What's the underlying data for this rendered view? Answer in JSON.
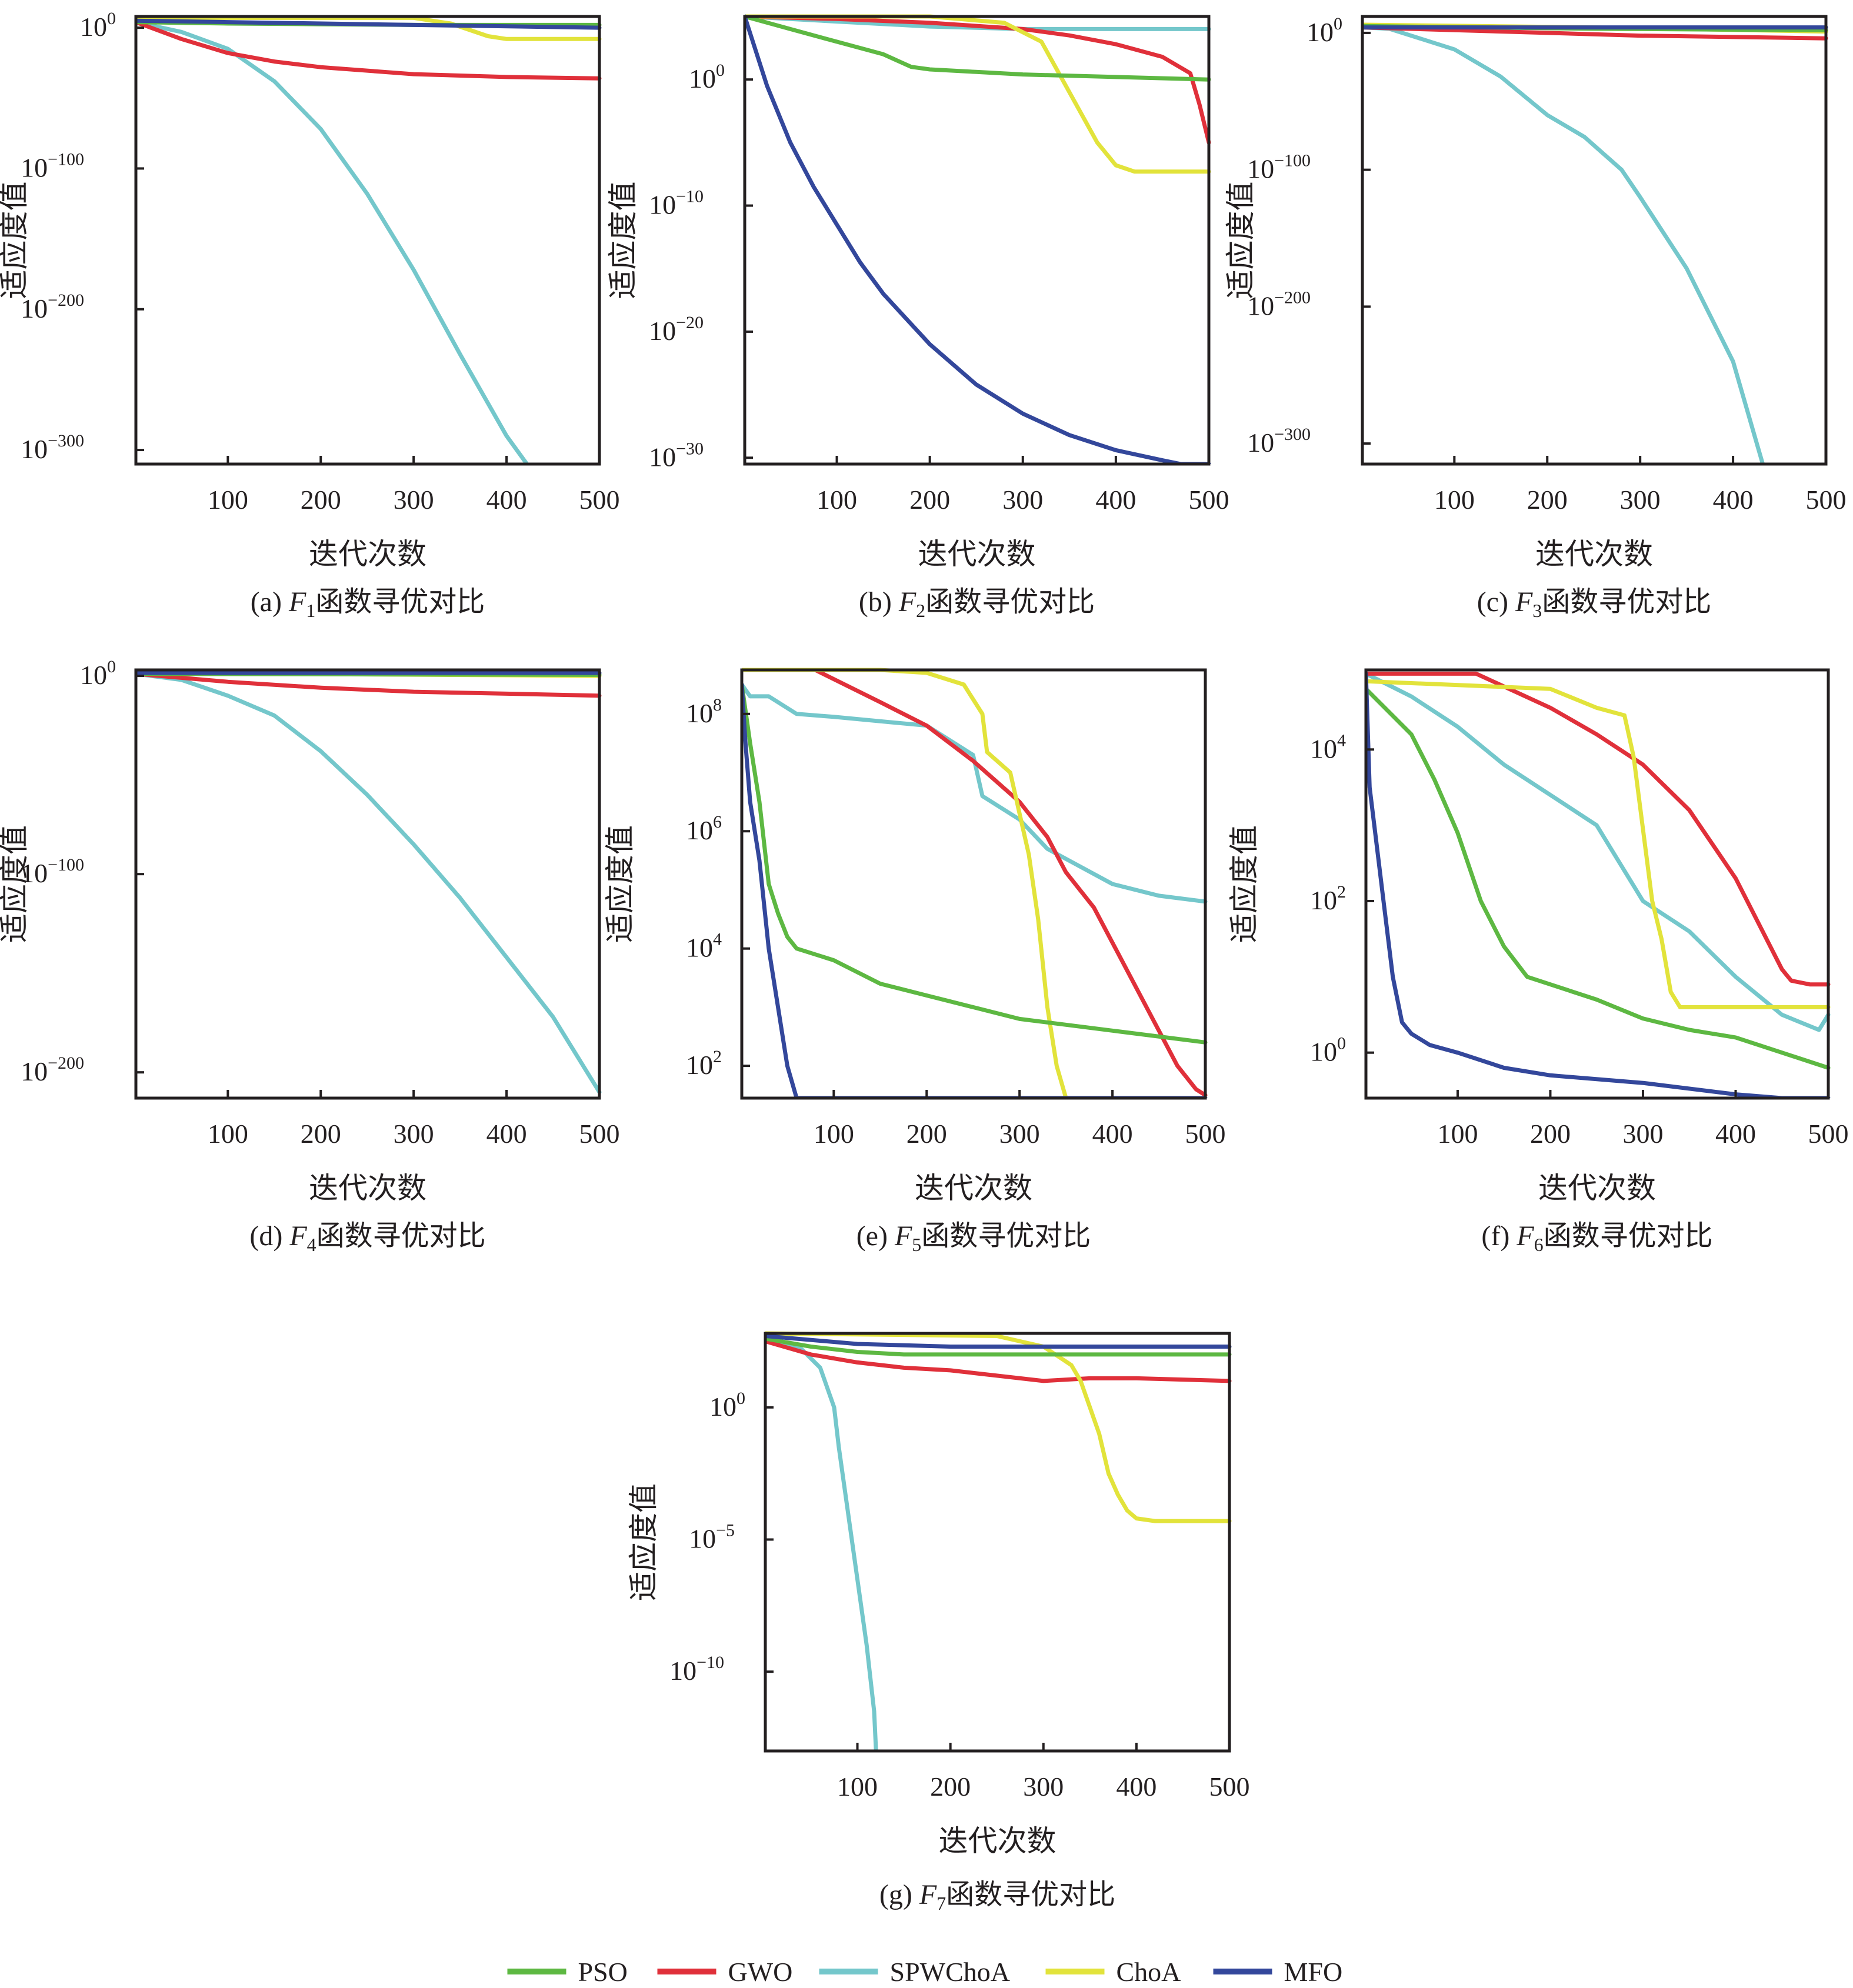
{
  "figure": {
    "legend": [
      {
        "name": "PSO",
        "color": "#5db842"
      },
      {
        "name": "GWO",
        "color": "#e0303a"
      },
      {
        "name": "SPWChoA",
        "color": "#74c7cb"
      },
      {
        "name": "ChoA",
        "color": "#e2e33b"
      },
      {
        "name": "MFO",
        "color": "#33479b"
      }
    ]
  },
  "chart_data": [
    {
      "type": "line",
      "id": "a",
      "title": "(a) F1函数寻优对比",
      "caption_prefix": "(a) ",
      "caption_fn": "F",
      "caption_sub": "1",
      "caption_suffix": "函数寻优对比",
      "xlabel": "迭代次数",
      "ylabel": "适应度值",
      "yscale": "log",
      "xlim": [
        1,
        500
      ],
      "ylim_exp": [
        -310,
        8
      ],
      "xticks": [
        100,
        200,
        300,
        400,
        500
      ],
      "yticks_exp": [
        0,
        -100,
        -200,
        -300
      ],
      "yticks": [
        "10^0",
        "10^-100",
        "10^-200",
        "10^-300"
      ],
      "series": [
        {
          "name": "PSO",
          "x": [
            1,
            100,
            200,
            300,
            400,
            500
          ],
          "log10y": [
            4,
            3,
            2.5,
            2,
            2,
            2
          ]
        },
        {
          "name": "GWO",
          "x": [
            1,
            50,
            100,
            150,
            200,
            300,
            400,
            500
          ],
          "log10y": [
            4,
            -8,
            -18,
            -24,
            -28,
            -33,
            -35,
            -36
          ]
        },
        {
          "name": "SPWChoA",
          "x": [
            1,
            50,
            100,
            150,
            200,
            250,
            300,
            350,
            400,
            422
          ],
          "log10y": [
            4,
            -3,
            -15,
            -38,
            -72,
            -118,
            -172,
            -232,
            -290,
            -310
          ]
        },
        {
          "name": "ChoA",
          "x": [
            1,
            300,
            340,
            380,
            400,
            500
          ],
          "log10y": [
            7,
            7,
            3,
            -6,
            -8,
            -8
          ]
        },
        {
          "name": "MFO",
          "x": [
            1,
            100,
            300,
            500
          ],
          "log10y": [
            5,
            4,
            2,
            0
          ]
        }
      ]
    },
    {
      "type": "line",
      "id": "b",
      "title": "(b) F2函数寻优对比",
      "caption_prefix": "(b) ",
      "caption_fn": "F",
      "caption_sub": "2",
      "caption_suffix": "函数寻优对比",
      "xlabel": "迭代次数",
      "ylabel": "适应度值",
      "yscale": "log",
      "xlim": [
        1,
        500
      ],
      "ylim_exp": [
        -30.5,
        5
      ],
      "xticks": [
        100,
        200,
        300,
        400,
        500
      ],
      "yticks_exp": [
        0,
        -10,
        -20,
        -30
      ],
      "yticks": [
        "10^0",
        "10^-10",
        "10^-20",
        "10^-30"
      ],
      "series": [
        {
          "name": "PSO",
          "x": [
            1,
            50,
            100,
            150,
            180,
            200,
            250,
            300,
            400,
            500
          ],
          "log10y": [
            5,
            4,
            3,
            2,
            1,
            0.8,
            0.6,
            0.4,
            0.2,
            0
          ]
        },
        {
          "name": "GWO",
          "x": [
            1,
            100,
            200,
            300,
            350,
            400,
            450,
            480,
            490,
            500
          ],
          "log10y": [
            5,
            4.8,
            4.5,
            4,
            3.5,
            2.8,
            1.8,
            0.5,
            -2,
            -5
          ]
        },
        {
          "name": "SPWChoA",
          "x": [
            1,
            100,
            200,
            300,
            400,
            500
          ],
          "log10y": [
            5,
            4.6,
            4.2,
            4,
            4,
            4
          ]
        },
        {
          "name": "ChoA",
          "x": [
            1,
            200,
            280,
            320,
            350,
            380,
            400,
            420,
            500
          ],
          "log10y": [
            5,
            5,
            4.5,
            3,
            -1,
            -5,
            -6.8,
            -7.3,
            -7.3
          ]
        },
        {
          "name": "MFO",
          "x": [
            1,
            25,
            50,
            75,
            100,
            125,
            150,
            175,
            200,
            250,
            300,
            350,
            400,
            450,
            470,
            500
          ],
          "log10y": [
            5,
            -0.5,
            -5,
            -8.5,
            -11.5,
            -14.5,
            -17,
            -19,
            -21,
            -24.2,
            -26.5,
            -28.2,
            -29.4,
            -30.2,
            -30.5,
            -30.5
          ]
        }
      ]
    },
    {
      "type": "line",
      "id": "c",
      "title": "(c) F3函数寻优对比",
      "caption_prefix": "(c) ",
      "caption_fn": "F",
      "caption_sub": "3",
      "caption_suffix": "函数寻优对比",
      "xlabel": "迭代次数",
      "ylabel": "适应度值",
      "yscale": "log",
      "xlim": [
        1,
        500
      ],
      "ylim_exp": [
        -315,
        12
      ],
      "xticks": [
        100,
        200,
        300,
        400,
        500
      ],
      "yticks_exp": [
        0,
        -100,
        -200,
        -300
      ],
      "yticks": [
        "10^0",
        "10^-100",
        "10^-200",
        "10^-300"
      ],
      "series": [
        {
          "name": "PSO",
          "x": [
            1,
            250,
            500
          ],
          "log10y": [
            5,
            3,
            2
          ]
        },
        {
          "name": "GWO",
          "x": [
            1,
            100,
            200,
            300,
            400,
            500
          ],
          "log10y": [
            4,
            2,
            0,
            -2,
            -3,
            -4
          ]
        },
        {
          "name": "SPWChoA",
          "x": [
            1,
            30,
            100,
            150,
            200,
            240,
            280,
            300,
            350,
            400,
            432
          ],
          "log10y": [
            4,
            3,
            -12,
            -32,
            -60,
            -76,
            -100,
            -120,
            -172,
            -240,
            -315
          ]
        },
        {
          "name": "ChoA",
          "x": [
            1,
            250,
            500
          ],
          "log10y": [
            6,
            4,
            1
          ]
        },
        {
          "name": "MFO",
          "x": [
            1,
            500
          ],
          "log10y": [
            4,
            4
          ]
        }
      ]
    },
    {
      "type": "line",
      "id": "d",
      "title": "(d) F4函数寻优对比",
      "caption_prefix": "(d) ",
      "caption_fn": "F",
      "caption_sub": "4",
      "caption_suffix": "函数寻优对比",
      "xlabel": "迭代次数",
      "ylabel": "适应度值",
      "yscale": "log",
      "xlim": [
        1,
        500
      ],
      "ylim_exp": [
        -213,
        3
      ],
      "xticks": [
        100,
        200,
        300,
        400,
        500
      ],
      "yticks_exp": [
        0,
        -100,
        -200
      ],
      "yticks": [
        "10^0",
        "10^-100",
        "10^-200"
      ],
      "series": [
        {
          "name": "PSO",
          "x": [
            1,
            500
          ],
          "log10y": [
            1,
            0.5
          ]
        },
        {
          "name": "GWO",
          "x": [
            1,
            100,
            200,
            300,
            400,
            500
          ],
          "log10y": [
            1,
            -3,
            -6,
            -8,
            -9,
            -10
          ]
        },
        {
          "name": "SPWChoA",
          "x": [
            1,
            50,
            100,
            150,
            200,
            250,
            300,
            350,
            400,
            450,
            500
          ],
          "log10y": [
            1,
            -2,
            -10,
            -20,
            -38,
            -60,
            -85,
            -112,
            -142,
            -172,
            -210
          ]
        },
        {
          "name": "ChoA",
          "x": [
            1,
            500
          ],
          "log10y": [
            1.5,
            0
          ]
        },
        {
          "name": "MFO",
          "x": [
            1,
            500
          ],
          "log10y": [
            1.5,
            1.5
          ]
        }
      ]
    },
    {
      "type": "line",
      "id": "e",
      "title": "(e) F5函数寻优对比",
      "caption_prefix": "(e) ",
      "caption_fn": "F",
      "caption_sub": "5",
      "caption_suffix": "函数寻优对比",
      "xlabel": "迭代次数",
      "ylabel": "适应度值",
      "yscale": "log",
      "xlim": [
        1,
        500
      ],
      "ylim_exp": [
        1.45,
        8.75
      ],
      "xticks": [
        100,
        200,
        300,
        400,
        500
      ],
      "yticks_exp": [
        2,
        4,
        6,
        8
      ],
      "yticks": [
        "10^2",
        "10^4",
        "10^6",
        "10^8"
      ],
      "series": [
        {
          "name": "PSO",
          "x": [
            1,
            10,
            20,
            30,
            40,
            50,
            60,
            100,
            150,
            200,
            250,
            300,
            350,
            400,
            500
          ],
          "log10y": [
            8.5,
            7.5,
            6.5,
            5.1,
            4.6,
            4.2,
            4.0,
            3.8,
            3.4,
            3.2,
            3.0,
            2.8,
            2.7,
            2.6,
            2.4
          ]
        },
        {
          "name": "GWO",
          "x": [
            1,
            80,
            150,
            200,
            250,
            300,
            330,
            350,
            380,
            400,
            430,
            450,
            470,
            490,
            500
          ],
          "log10y": [
            8.75,
            8.75,
            8.2,
            7.8,
            7.2,
            6.5,
            5.9,
            5.3,
            4.7,
            4.1,
            3.2,
            2.6,
            2.0,
            1.6,
            1.5
          ]
        },
        {
          "name": "SPWChoA",
          "x": [
            1,
            10,
            30,
            60,
            100,
            200,
            250,
            260,
            300,
            330,
            400,
            450,
            500
          ],
          "log10y": [
            8.5,
            8.3,
            8.3,
            8.0,
            7.95,
            7.8,
            7.3,
            6.6,
            6.2,
            5.7,
            5.1,
            4.9,
            4.8
          ]
        },
        {
          "name": "ChoA",
          "x": [
            1,
            150,
            200,
            240,
            260,
            265,
            290,
            300,
            310,
            320,
            330,
            340,
            350,
            500
          ],
          "log10y": [
            8.75,
            8.75,
            8.7,
            8.5,
            8.0,
            7.35,
            7.0,
            6.3,
            5.6,
            4.5,
            3.0,
            2.0,
            1.45,
            1.45
          ]
        },
        {
          "name": "MFO",
          "x": [
            1,
            5,
            10,
            20,
            30,
            40,
            50,
            60,
            500
          ],
          "log10y": [
            8.5,
            7.5,
            6.5,
            5.5,
            4.0,
            3.0,
            2.0,
            1.45,
            1.45
          ]
        }
      ]
    },
    {
      "type": "line",
      "id": "f",
      "title": "(f) F6函数寻优对比",
      "caption_prefix": "(f) ",
      "caption_fn": "F",
      "caption_sub": "6",
      "caption_suffix": "函数寻优对比",
      "xlabel": "迭代次数",
      "ylabel": "适应度值",
      "yscale": "log",
      "xlim": [
        1,
        500
      ],
      "ylim_exp": [
        -0.6,
        5.05
      ],
      "xticks": [
        100,
        200,
        300,
        400,
        500
      ],
      "yticks_exp": [
        0,
        2,
        4
      ],
      "yticks": [
        "10^0",
        "10^2",
        "10^4"
      ],
      "series": [
        {
          "name": "PSO",
          "x": [
            1,
            50,
            75,
            100,
            125,
            150,
            175,
            200,
            250,
            300,
            350,
            400,
            450,
            500
          ],
          "log10y": [
            4.8,
            4.2,
            3.6,
            2.9,
            2.0,
            1.4,
            1.0,
            0.9,
            0.7,
            0.45,
            0.3,
            0.2,
            0.0,
            -0.2
          ]
        },
        {
          "name": "GWO",
          "x": [
            1,
            120,
            200,
            250,
            300,
            350,
            400,
            450,
            460,
            480,
            500
          ],
          "log10y": [
            5.0,
            5.0,
            4.55,
            4.2,
            3.8,
            3.2,
            2.3,
            1.1,
            0.95,
            0.9,
            0.9
          ]
        },
        {
          "name": "SPWChoA",
          "x": [
            1,
            50,
            100,
            150,
            200,
            250,
            270,
            300,
            350,
            400,
            450,
            490,
            500
          ],
          "log10y": [
            5.0,
            4.7,
            4.3,
            3.8,
            3.4,
            3.0,
            2.6,
            2.0,
            1.6,
            1.0,
            0.5,
            0.3,
            0.5
          ]
        },
        {
          "name": "ChoA",
          "x": [
            1,
            200,
            250,
            280,
            290,
            310,
            320,
            330,
            340,
            500
          ],
          "log10y": [
            4.9,
            4.8,
            4.55,
            4.45,
            3.9,
            2.0,
            1.5,
            0.8,
            0.6,
            0.6
          ]
        },
        {
          "name": "MFO",
          "x": [
            1,
            5,
            10,
            20,
            30,
            40,
            50,
            70,
            100,
            150,
            200,
            300,
            400,
            450,
            500
          ],
          "log10y": [
            5.0,
            3.5,
            3.0,
            2.0,
            1.0,
            0.4,
            0.25,
            0.1,
            0.0,
            -0.2,
            -0.3,
            -0.4,
            -0.55,
            -0.6,
            -0.6
          ]
        }
      ]
    },
    {
      "type": "line",
      "id": "g",
      "title": "(g) F7函数寻优对比",
      "caption_prefix": "(g) ",
      "caption_fn": "F",
      "caption_sub": "7",
      "caption_suffix": "函数寻优对比",
      "xlabel": "迭代次数",
      "ylabel": "适应度值",
      "yscale": "log",
      "xlim": [
        1,
        500
      ],
      "ylim_exp": [
        -13,
        2.8
      ],
      "xticks": [
        100,
        200,
        300,
        400,
        500
      ],
      "yticks_exp": [
        0,
        -5,
        -10
      ],
      "yticks": [
        "10^0",
        "10^-5",
        "10^-10"
      ],
      "series": [
        {
          "name": "PSO",
          "x": [
            1,
            50,
            100,
            150,
            200,
            500
          ],
          "log10y": [
            2.6,
            2.3,
            2.1,
            2.0,
            2.0,
            2.0
          ]
        },
        {
          "name": "GWO",
          "x": [
            1,
            50,
            100,
            150,
            200,
            250,
            300,
            350,
            400,
            500
          ],
          "log10y": [
            2.5,
            2.0,
            1.7,
            1.5,
            1.4,
            1.2,
            1.0,
            1.1,
            1.1,
            1.0
          ]
        },
        {
          "name": "SPWChoA",
          "x": [
            1,
            40,
            60,
            70,
            75,
            80,
            90,
            100,
            110,
            118,
            120
          ],
          "log10y": [
            2.5,
            2.2,
            1.5,
            0.5,
            0.0,
            -1.5,
            -4.0,
            -6.5,
            -9.0,
            -11.5,
            -13
          ]
        },
        {
          "name": "ChoA",
          "x": [
            1,
            250,
            300,
            330,
            340,
            350,
            360,
            370,
            380,
            390,
            400,
            420,
            500
          ],
          "log10y": [
            2.8,
            2.7,
            2.3,
            1.6,
            1.0,
            0.0,
            -1.0,
            -2.5,
            -3.3,
            -3.9,
            -4.2,
            -4.3,
            -4.3
          ]
        },
        {
          "name": "MFO",
          "x": [
            1,
            100,
            200,
            500
          ],
          "log10y": [
            2.7,
            2.4,
            2.3,
            2.3
          ]
        }
      ]
    }
  ]
}
